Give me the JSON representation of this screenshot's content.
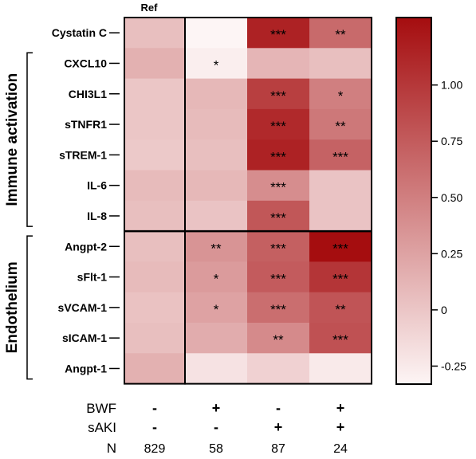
{
  "chart_data": {
    "type": "heatmap",
    "ref_label": "Ref",
    "rows": [
      "Cystatin C",
      "CXCL10",
      "CHI3L1",
      "sTNFR1",
      "sTREM-1",
      "IL-6",
      "IL-8",
      "Angpt-2",
      "sFlt-1",
      "sVCAM-1",
      "sICAM-1",
      "Angpt-1"
    ],
    "groups": [
      {
        "label": "Immune activation",
        "rows": [
          "CXCL10",
          "CHI3L1",
          "sTNFR1",
          "sTREM-1",
          "IL-6",
          "IL-8"
        ]
      },
      {
        "label": "Endothelium",
        "rows": [
          "Angpt-2",
          "sFlt-1",
          "sVCAM-1",
          "sICAM-1",
          "Angpt-1"
        ]
      }
    ],
    "columns": [
      {
        "BWF": "-",
        "sAKI": "-",
        "N": "829"
      },
      {
        "BWF": "+",
        "sAKI": "-",
        "N": "58"
      },
      {
        "BWF": "-",
        "sAKI": "+",
        "N": "87"
      },
      {
        "BWF": "+",
        "sAKI": "+",
        "N": "24"
      }
    ],
    "row_labels_bottom": [
      "BWF",
      "sAKI",
      "N"
    ],
    "values": [
      [
        0.05,
        -0.33,
        1.15,
        0.65
      ],
      [
        0.15,
        -0.28,
        0.12,
        0.05
      ],
      [
        0.0,
        0.1,
        0.95,
        0.5
      ],
      [
        0.0,
        0.08,
        1.1,
        0.55
      ],
      [
        -0.02,
        0.05,
        1.15,
        0.7
      ],
      [
        0.08,
        0.1,
        0.4,
        0.02
      ],
      [
        0.05,
        0.02,
        0.78,
        0.02
      ],
      [
        0.05,
        0.35,
        0.72,
        1.3
      ],
      [
        0.08,
        0.3,
        0.75,
        1.02
      ],
      [
        0.03,
        0.25,
        0.62,
        0.8
      ],
      [
        0.05,
        0.18,
        0.42,
        0.82
      ],
      [
        0.15,
        -0.2,
        -0.08,
        -0.25
      ]
    ],
    "significance": [
      [
        "",
        "",
        "***",
        "**"
      ],
      [
        "",
        "*",
        "",
        ""
      ],
      [
        "",
        "",
        "***",
        "*"
      ],
      [
        "",
        "",
        "***",
        "**"
      ],
      [
        "",
        "",
        "***",
        "***"
      ],
      [
        "",
        "",
        "***",
        ""
      ],
      [
        "",
        "",
        "***",
        ""
      ],
      [
        "",
        "**",
        "***",
        "***"
      ],
      [
        "",
        "*",
        "***",
        "***"
      ],
      [
        "",
        "*",
        "***",
        "**"
      ],
      [
        "",
        "",
        "**",
        "***"
      ],
      [
        "",
        "",
        "",
        ""
      ]
    ],
    "color_scale": {
      "min": -0.33,
      "max": 1.3,
      "low_color": "#fdf5f5",
      "high_color": "#a50d0f"
    },
    "colorbar_ticks": [
      -0.25,
      0,
      0.25,
      0.5,
      0.75,
      1.0
    ],
    "colorbar_tick_labels": [
      "-0.25",
      "0",
      "0.25",
      "0.50",
      "0.75",
      "1.00"
    ]
  }
}
